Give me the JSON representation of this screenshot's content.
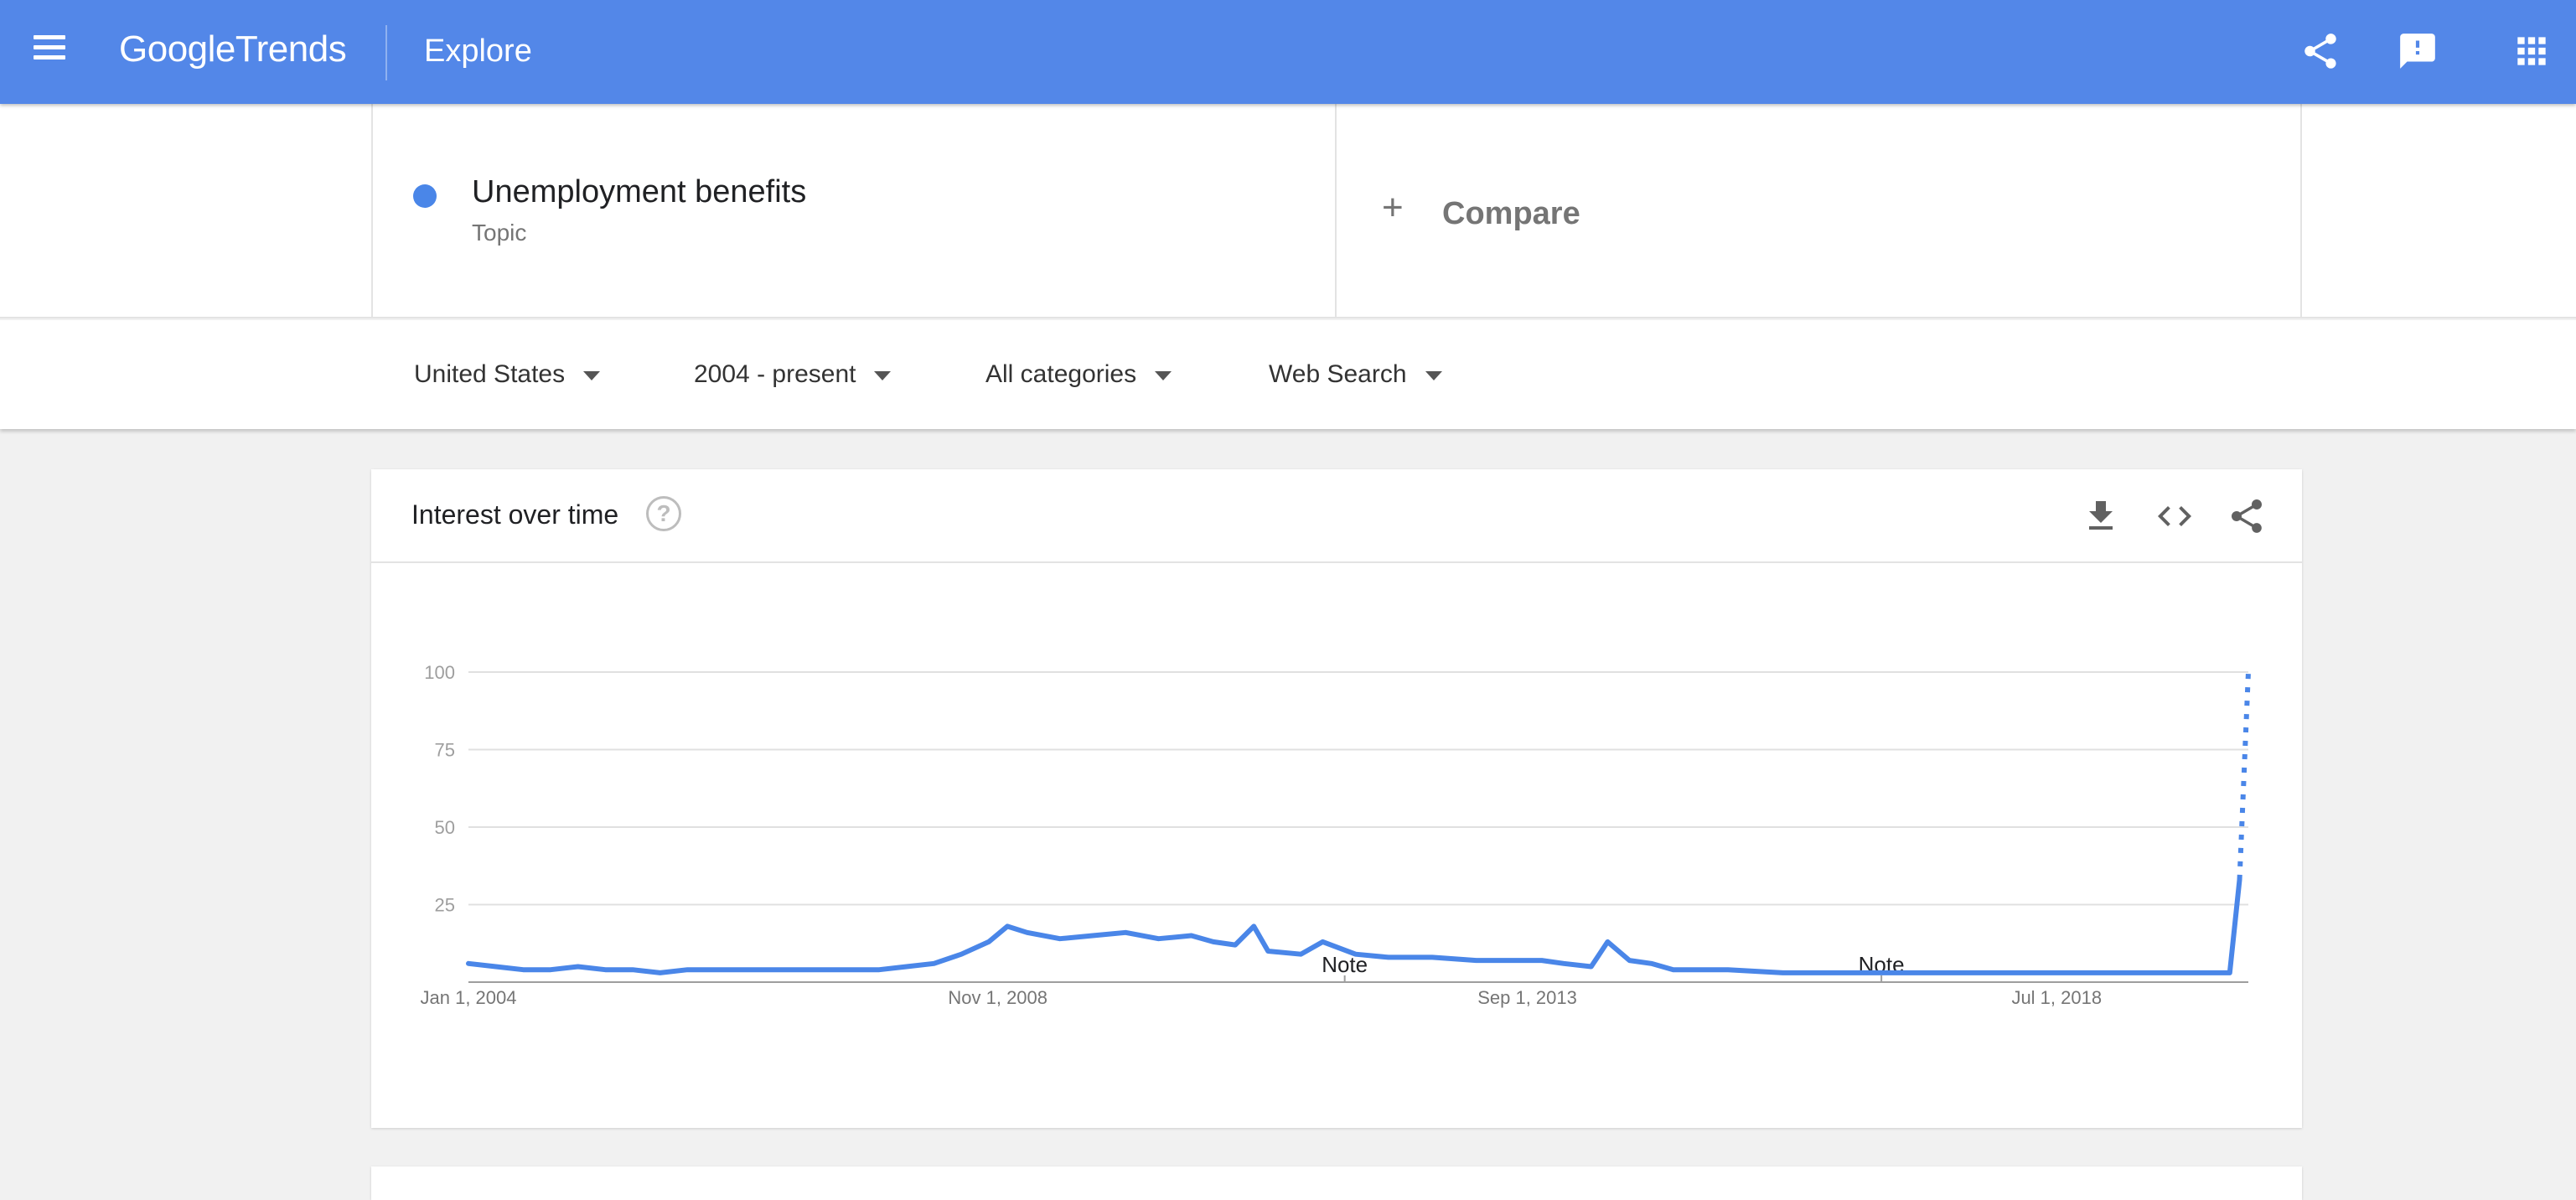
{
  "appbar": {
    "logo_google": "Google",
    "logo_trends": "Trends",
    "page_title": "Explore"
  },
  "search": {
    "term": "Unemployment benefits",
    "term_type": "Topic",
    "term_color": "#4a86e8",
    "compare_label": "Compare"
  },
  "filters": {
    "region": "United States",
    "time_range": "2004 - present",
    "category": "All categories",
    "search_type": "Web Search"
  },
  "interest_card": {
    "title": "Interest over time"
  },
  "icons": {
    "menu": "menu-icon",
    "share": "share-icon",
    "feedback": "feedback-icon",
    "apps": "apps-icon",
    "help": "help-icon",
    "download": "download-icon",
    "embed": "embed-icon"
  },
  "chart_data": {
    "type": "line",
    "ylim": [
      0,
      100
    ],
    "y_ticks": [
      "100",
      "75",
      "50",
      "25"
    ],
    "x_tick_labels": [
      "Jan 1, 2004",
      "Nov 1, 2008",
      "Sep 1, 2013",
      "Jul 1, 2018"
    ],
    "x_tick_dates": [
      2004.0,
      2008.833,
      2013.667,
      2018.5
    ],
    "xlim": [
      2004.0,
      2020.25
    ],
    "grid": true,
    "legend": "none",
    "series": [
      {
        "color": "#4a86e8",
        "points": [
          [
            2004.0,
            6
          ],
          [
            2004.25,
            5
          ],
          [
            2004.5,
            4
          ],
          [
            2004.75,
            4
          ],
          [
            2005.0,
            5
          ],
          [
            2005.25,
            4
          ],
          [
            2005.5,
            4
          ],
          [
            2005.75,
            3
          ],
          [
            2006.0,
            4
          ],
          [
            2006.25,
            4
          ],
          [
            2006.5,
            4
          ],
          [
            2006.75,
            4
          ],
          [
            2007.0,
            4
          ],
          [
            2007.25,
            4
          ],
          [
            2007.5,
            4
          ],
          [
            2007.75,
            4
          ],
          [
            2008.0,
            5
          ],
          [
            2008.25,
            6
          ],
          [
            2008.5,
            9
          ],
          [
            2008.75,
            13
          ],
          [
            2008.92,
            18
          ],
          [
            2009.1,
            16
          ],
          [
            2009.4,
            14
          ],
          [
            2009.7,
            15
          ],
          [
            2010.0,
            16
          ],
          [
            2010.3,
            14
          ],
          [
            2010.6,
            15
          ],
          [
            2010.8,
            13
          ],
          [
            2011.0,
            12
          ],
          [
            2011.17,
            18
          ],
          [
            2011.3,
            10
          ],
          [
            2011.6,
            9
          ],
          [
            2011.8,
            13
          ],
          [
            2012.1,
            9
          ],
          [
            2012.4,
            8
          ],
          [
            2012.8,
            8
          ],
          [
            2013.2,
            7
          ],
          [
            2013.5,
            7
          ],
          [
            2013.8,
            7
          ],
          [
            2014.0,
            6
          ],
          [
            2014.25,
            5
          ],
          [
            2014.4,
            13
          ],
          [
            2014.6,
            7
          ],
          [
            2014.8,
            6
          ],
          [
            2015.0,
            4
          ],
          [
            2015.5,
            4
          ],
          [
            2016.0,
            3
          ],
          [
            2016.5,
            3
          ],
          [
            2017.0,
            3
          ],
          [
            2017.5,
            3
          ],
          [
            2018.0,
            3
          ],
          [
            2018.5,
            3
          ],
          [
            2019.0,
            3
          ],
          [
            2019.5,
            3
          ],
          [
            2020.0,
            3
          ],
          [
            2020.08,
            3
          ],
          [
            2020.17,
            33
          ]
        ]
      },
      {
        "style": "dotted",
        "color": "#4a86e8",
        "points": [
          [
            2020.17,
            33
          ],
          [
            2020.25,
            100
          ]
        ]
      }
    ],
    "annotations": [
      {
        "label": "Note",
        "x": 2012.0
      },
      {
        "label": "Note",
        "x": 2016.9
      }
    ]
  }
}
